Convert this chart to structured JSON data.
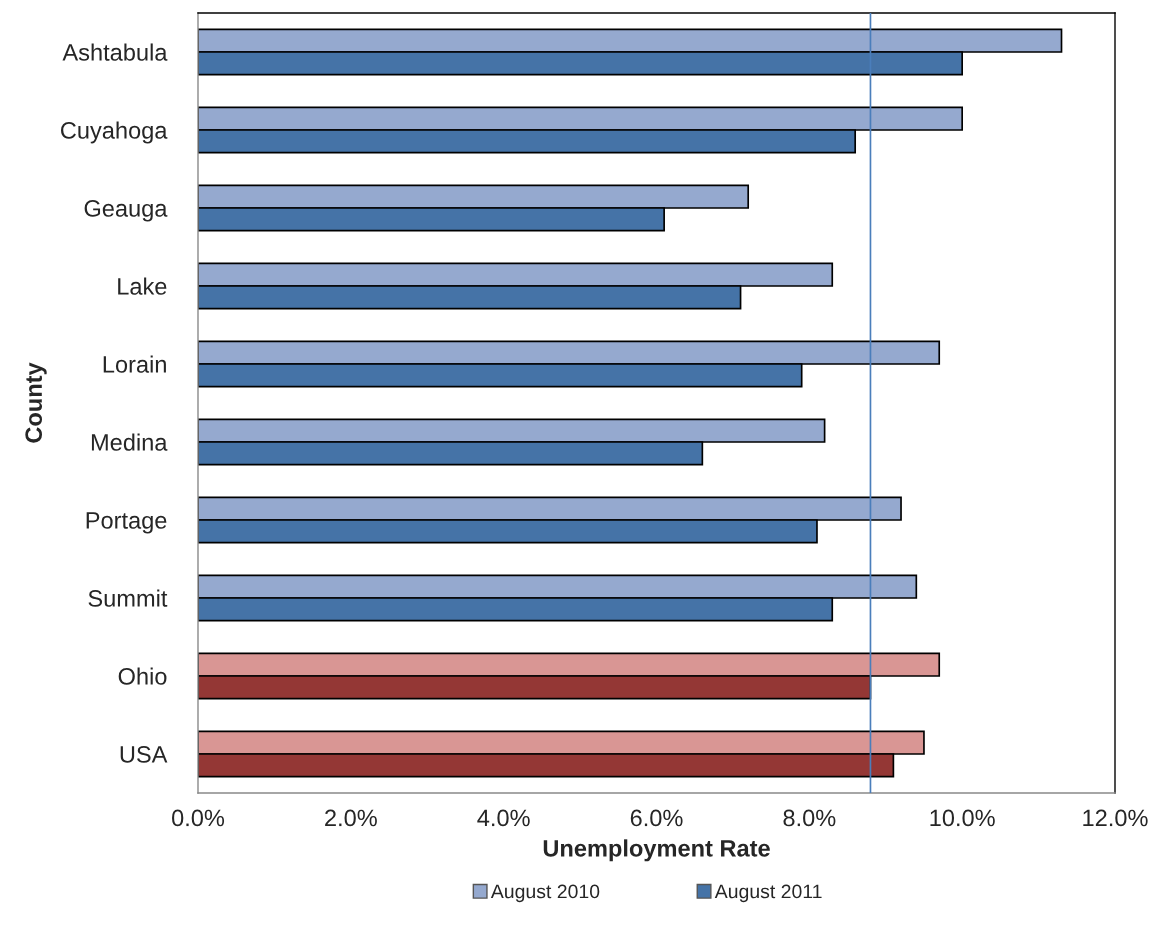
{
  "chart_data": {
    "type": "bar",
    "orientation": "horizontal",
    "xlabel": "Unemployment Rate",
    "ylabel": "County",
    "categories": [
      "Ashtabula",
      "Cuyahoga",
      "Geauga",
      "Lake",
      "Lorain",
      "Medina",
      "Portage",
      "Summit",
      "Ohio",
      "USA"
    ],
    "series": [
      {
        "name": "August 2010",
        "color": "#95a9cf",
        "colors": [
          "#95a9cf",
          "#95a9cf",
          "#95a9cf",
          "#95a9cf",
          "#95a9cf",
          "#95a9cf",
          "#95a9cf",
          "#95a9cf",
          "#d99694",
          "#d99694"
        ],
        "values": [
          11.3,
          10.0,
          7.2,
          8.3,
          9.7,
          8.2,
          9.2,
          9.4,
          9.7,
          9.5
        ]
      },
      {
        "name": "August 2011",
        "color": "#4573a7",
        "colors": [
          "#4573a7",
          "#4573a7",
          "#4573a7",
          "#4573a7",
          "#4573a7",
          "#4573a7",
          "#4573a7",
          "#4573a7",
          "#943735",
          "#943735"
        ],
        "values": [
          10.0,
          8.6,
          6.1,
          7.1,
          7.9,
          6.6,
          8.1,
          8.3,
          8.8,
          9.1
        ]
      }
    ],
    "xlim": [
      0,
      12
    ],
    "xticks": [
      {
        "value": 0,
        "label": "0.0%"
      },
      {
        "value": 2,
        "label": "2.0%"
      },
      {
        "value": 4,
        "label": "4.0%"
      },
      {
        "value": 6,
        "label": "6.0%"
      },
      {
        "value": 8,
        "label": "8.0%"
      },
      {
        "value": 10,
        "label": "10.0%"
      },
      {
        "value": 12,
        "label": "12.0%"
      }
    ],
    "ref_lines": [
      {
        "axis": "x",
        "value": 8.8,
        "color": "#4a7ebb"
      }
    ],
    "grid": false,
    "legend": "bottom"
  }
}
